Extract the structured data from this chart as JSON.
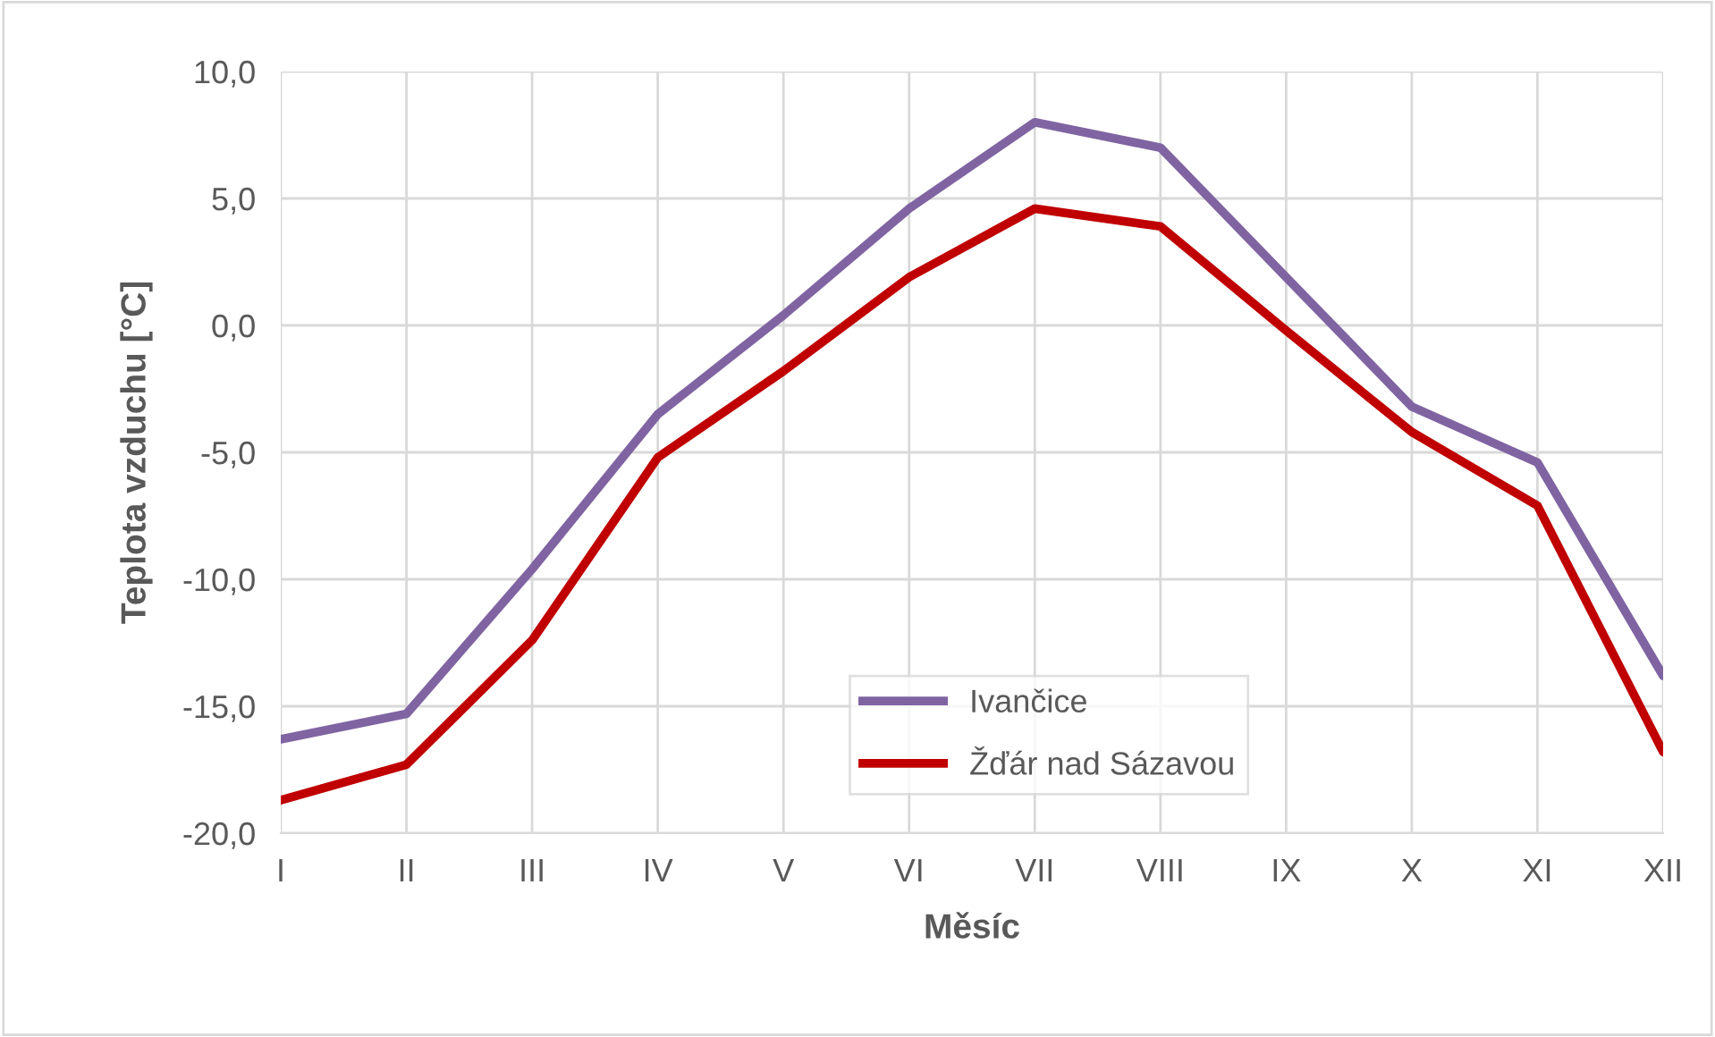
{
  "chart_data": {
    "type": "line",
    "xlabel": "Měsíc",
    "ylabel": "Teplota vzduchu [°C]",
    "categories": [
      "I",
      "II",
      "III",
      "IV",
      "V",
      "VI",
      "VII",
      "VIII",
      "IX",
      "X",
      "XI",
      "XII"
    ],
    "series": [
      {
        "name": "Ivančice",
        "color": "#8064a2",
        "values": [
          -16.3,
          -15.3,
          -9.6,
          -3.5,
          0.4,
          4.6,
          8.0,
          7.0,
          1.9,
          -3.2,
          -5.4,
          -13.8
        ]
      },
      {
        "name": "Žďár nad Sázavou",
        "color": "#c00000",
        "values": [
          -18.7,
          -17.3,
          -12.4,
          -5.2,
          -1.8,
          1.9,
          4.6,
          3.9,
          -0.2,
          -4.2,
          -7.1,
          -16.8
        ]
      }
    ],
    "ylim": [
      -20,
      10
    ],
    "yticks": [
      {
        "value": -20,
        "label": "-20,0"
      },
      {
        "value": -15,
        "label": "-15,0"
      },
      {
        "value": -10,
        "label": "-10,0"
      },
      {
        "value": -5,
        "label": "-5,0"
      },
      {
        "value": 0,
        "label": "0,0"
      },
      {
        "value": 5,
        "label": "5,0"
      },
      {
        "value": 10,
        "label": "10,0"
      }
    ],
    "grid": true,
    "legend": "bottom",
    "marker": "none",
    "line_style": "solid"
  }
}
